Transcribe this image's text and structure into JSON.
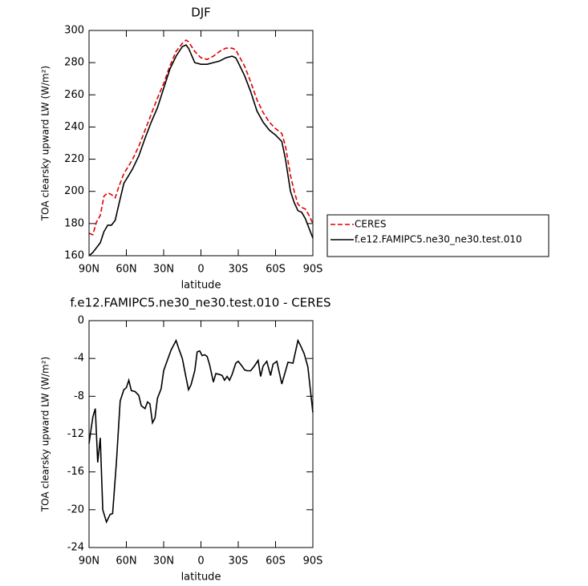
{
  "chart_data": [
    {
      "type": "line",
      "title": "DJF",
      "xlabel": "latitude",
      "ylabel": "TOA clearsky upward LW (W/m²)",
      "x": [
        90,
        87,
        84,
        81,
        78,
        75,
        72,
        69,
        66,
        62,
        58,
        55,
        50,
        45,
        40,
        35,
        30,
        25,
        20,
        15,
        12,
        10,
        5,
        0,
        -5,
        -10,
        -15,
        -20,
        -25,
        -28,
        -30,
        -35,
        -40,
        -45,
        -50,
        -55,
        -60,
        -65,
        -68,
        -72,
        -75,
        -78,
        -81,
        -84,
        -87,
        -90
      ],
      "series": [
        {
          "name": "CERES",
          "color": "#e00000",
          "dashed": true,
          "values": [
            174,
            173,
            181,
            185,
            197,
            199,
            198,
            196,
            203,
            211,
            216,
            220,
            228,
            238,
            248,
            258,
            267,
            278,
            287,
            292,
            294,
            293,
            287,
            283,
            282,
            284,
            287,
            289,
            289,
            288,
            285,
            278,
            268,
            257,
            249,
            243,
            239,
            236,
            228,
            210,
            200,
            192,
            190,
            189,
            185,
            180
          ]
        },
        {
          "name": "f.e12.FAMIPC5.ne30_ne30.test.010",
          "color": "#000000",
          "dashed": false,
          "values": [
            160,
            162,
            165,
            168,
            175,
            179,
            179,
            182,
            192,
            205,
            210,
            214,
            222,
            233,
            243,
            252,
            264,
            276,
            284,
            290,
            291,
            289,
            280,
            279,
            279,
            280,
            281,
            283,
            284,
            283,
            280,
            272,
            262,
            250,
            243,
            238,
            235,
            231,
            220,
            200,
            193,
            188,
            187,
            183,
            177,
            171
          ]
        }
      ],
      "xlim": [
        90,
        -90
      ],
      "xticks": [
        {
          "value": 90,
          "label": "90N"
        },
        {
          "value": 60,
          "label": "60N"
        },
        {
          "value": 30,
          "label": "30N"
        },
        0,
        {
          "value": -30,
          "label": "30S"
        },
        {
          "value": -60,
          "label": "60S"
        },
        {
          "value": -90,
          "label": "90S"
        }
      ],
      "ylim": [
        160,
        300
      ],
      "yticks": [
        160,
        180,
        200,
        220,
        240,
        260,
        280,
        300
      ],
      "legend": "right"
    },
    {
      "type": "line",
      "title": "f.e12.FAMIPC5.ne30_ne30.test.010 - CERES",
      "xlabel": "latitude",
      "ylabel": "TOA clearsky upward LW (W/m²)",
      "x": [
        90,
        87,
        85,
        83,
        81,
        79,
        76,
        73,
        71,
        68,
        65,
        62,
        60,
        58,
        56,
        53,
        50,
        48,
        45,
        43,
        41,
        39,
        37,
        35,
        32,
        30,
        27,
        24,
        20,
        18,
        15,
        12,
        10,
        8,
        5,
        3,
        1,
        -1,
        -3,
        -5,
        -7,
        -10,
        -12,
        -15,
        -17,
        -19,
        -21,
        -23,
        -25,
        -28,
        -30,
        -33,
        -35,
        -37,
        -40,
        -43,
        -46,
        -48,
        -50,
        -53,
        -56,
        -58,
        -61,
        -65,
        -70,
        -74,
        -78,
        -80,
        -83,
        -86,
        -88,
        -90
      ],
      "values": [
        -13,
        -10.2,
        -9.3,
        -15,
        -12.4,
        -20,
        -21.3,
        -20.5,
        -20.4,
        -15,
        -8.5,
        -7.3,
        -7.1,
        -6.3,
        -7.4,
        -7.5,
        -7.9,
        -9,
        -9.3,
        -8.6,
        -8.8,
        -10.8,
        -10.3,
        -8.2,
        -7.2,
        -5.3,
        -4.2,
        -3.1,
        -2.1,
        -2.9,
        -4,
        -6,
        -7.3,
        -6.8,
        -5.3,
        -3.3,
        -3.2,
        -3.7,
        -3.6,
        -3.8,
        -4.7,
        -6.5,
        -5.6,
        -5.7,
        -5.8,
        -6.3,
        -5.9,
        -6.3,
        -5.7,
        -4.5,
        -4.3,
        -4.8,
        -5.2,
        -5.3,
        -5.3,
        -4.8,
        -4.2,
        -5.9,
        -4.8,
        -4.3,
        -5.8,
        -4.6,
        -4.3,
        -6.7,
        -4.4,
        -4.5,
        -2.1,
        -2.6,
        -3.5,
        -4.9,
        -7.3,
        -9.7
      ],
      "color": "#000000",
      "xlim": [
        90,
        -90
      ],
      "xticks": [
        {
          "value": 90,
          "label": "90N"
        },
        {
          "value": 60,
          "label": "60N"
        },
        {
          "value": 30,
          "label": "30N"
        },
        0,
        {
          "value": -30,
          "label": "30S"
        },
        {
          "value": -60,
          "label": "60S"
        },
        {
          "value": -90,
          "label": "90S"
        }
      ],
      "ylim": [
        -24,
        0
      ],
      "yticks": [
        -24,
        -20,
        -16,
        -12,
        -8,
        -4,
        0
      ]
    }
  ]
}
